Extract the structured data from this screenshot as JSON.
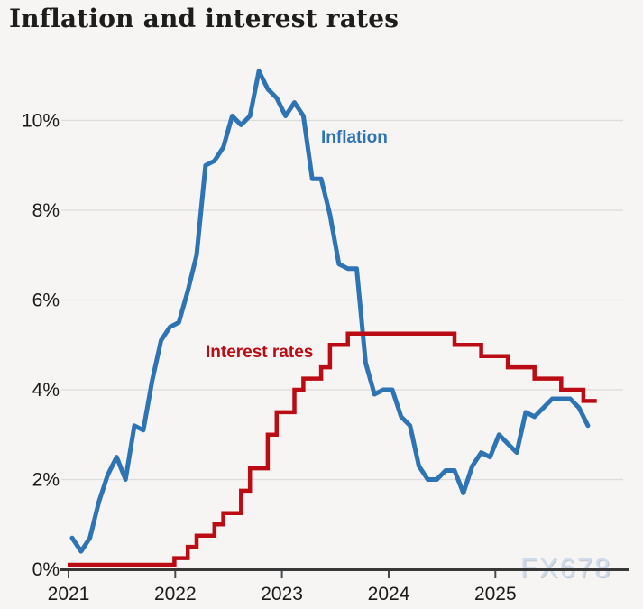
{
  "title": "Inflation and interest rates",
  "watermark": "FX678",
  "colors": {
    "background": "#f6f5f3",
    "gridline": "#dcdcda",
    "axis": "#383838",
    "tick": "#4a4a4a",
    "inflation_blue": "#2e73b4",
    "rates_red": "#bb0c15",
    "title_text": "#1d1d1b",
    "axis_text": "#1a1a1a",
    "watermark_text": "#cedbed"
  },
  "chart_data": {
    "type": "line",
    "title": "Inflation and interest rates",
    "x_axis": {
      "tick_labels": [
        "2021",
        "2022",
        "2023",
        "2024",
        "2025"
      ],
      "tick_months": [
        0,
        12,
        24,
        36,
        48
      ],
      "start_month": "Jan 2021",
      "end_month": "Dec 2025",
      "grid": false
    },
    "y_axis": {
      "tick_labels": [
        "0%",
        "2%",
        "4%",
        "6%",
        "8%",
        "10%"
      ],
      "tick_values": [
        0,
        2,
        4,
        6,
        8,
        10
      ],
      "unit": "%",
      "range": [
        0,
        11.6
      ],
      "grid": true
    },
    "legend_position": "inline-annotations",
    "series": [
      {
        "name": "Inflation",
        "type": "line",
        "color": "#2e73b4",
        "start_month": "Jan 2021",
        "monthly_values": [
          0.7,
          0.4,
          0.7,
          1.5,
          2.1,
          2.5,
          2.0,
          3.2,
          3.1,
          4.2,
          5.1,
          5.4,
          5.5,
          6.2,
          7.0,
          9.0,
          9.1,
          9.4,
          10.1,
          9.9,
          10.1,
          11.1,
          10.7,
          10.5,
          10.1,
          10.4,
          10.1,
          8.7,
          8.7,
          7.9,
          6.8,
          6.7,
          6.7,
          4.6,
          3.9,
          4.0,
          4.0,
          3.4,
          3.2,
          2.3,
          2.0,
          2.0,
          2.2,
          2.2,
          1.7,
          2.3,
          2.6,
          2.5,
          3.0,
          2.8,
          2.6,
          3.5,
          3.4,
          3.6,
          3.8,
          3.8,
          3.8,
          3.6,
          3.2
        ]
      },
      {
        "name": "Interest rates",
        "type": "step",
        "color": "#bb0c15",
        "initial_rate": 0.1,
        "end_month_index": 59,
        "steps": [
          {
            "month_index": 11.5,
            "date": "Dec 2021",
            "rate": 0.25
          },
          {
            "month_index": 13,
            "date": "Feb 2022",
            "rate": 0.5
          },
          {
            "month_index": 14,
            "date": "Mar 2022",
            "rate": 0.75
          },
          {
            "month_index": 16,
            "date": "May 2022",
            "rate": 1.0
          },
          {
            "month_index": 17,
            "date": "Jun 2022",
            "rate": 1.25
          },
          {
            "month_index": 19,
            "date": "Aug 2022",
            "rate": 1.75
          },
          {
            "month_index": 20,
            "date": "Sep 2022",
            "rate": 2.25
          },
          {
            "month_index": 22,
            "date": "Nov 2022",
            "rate": 3.0
          },
          {
            "month_index": 23,
            "date": "Dec 2022",
            "rate": 3.5
          },
          {
            "month_index": 25,
            "date": "Feb 2023",
            "rate": 4.0
          },
          {
            "month_index": 26,
            "date": "Mar 2023",
            "rate": 4.25
          },
          {
            "month_index": 28,
            "date": "May 2023",
            "rate": 4.5
          },
          {
            "month_index": 29,
            "date": "Jun 2023",
            "rate": 5.0
          },
          {
            "month_index": 31,
            "date": "Aug 2023",
            "rate": 5.25
          },
          {
            "month_index": 43,
            "date": "Aug 2024",
            "rate": 5.0
          },
          {
            "month_index": 46,
            "date": "Nov 2024",
            "rate": 4.75
          },
          {
            "month_index": 49,
            "date": "Feb 2025",
            "rate": 4.5
          },
          {
            "month_index": 52,
            "date": "May 2025",
            "rate": 4.25
          },
          {
            "month_index": 55,
            "date": "Aug 2025",
            "rate": 4.0
          },
          {
            "month_index": 57.5,
            "date": "Dec 2025",
            "rate": 3.75
          }
        ]
      }
    ]
  }
}
